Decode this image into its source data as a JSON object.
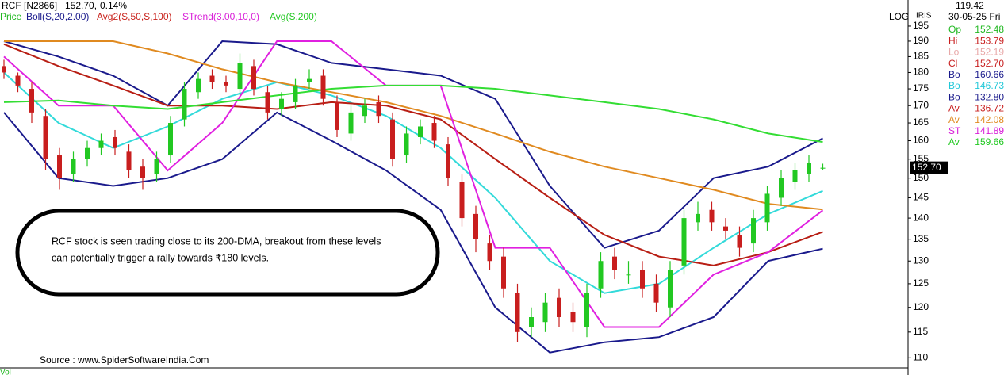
{
  "chart_data": {
    "type": "candlestick",
    "symbol": "RCF [N2866]",
    "last_price": "152.70,",
    "change": "0.14%",
    "price_label": "Price",
    "price_label_color": "#22b822",
    "scale_label": "LOG",
    "axis_label": "IRIS",
    "log_scale": true,
    "up_color": "#22c822",
    "down_color": "#c81e1e",
    "ylim": [
      108.7,
      204
    ],
    "yticks": [
      110,
      115,
      120,
      125,
      130,
      135,
      140,
      145,
      150,
      155,
      160,
      165,
      170,
      175,
      180,
      185,
      190,
      195
    ],
    "open": [
      182,
      179,
      175,
      167,
      156,
      151,
      155,
      158,
      161,
      157,
      153,
      151,
      156,
      166,
      174,
      179,
      177,
      175,
      182,
      174,
      169,
      171,
      177,
      179,
      171,
      162,
      167,
      171,
      166,
      156,
      161,
      165,
      159,
      149,
      141,
      134,
      131,
      123,
      116,
      117,
      122,
      119,
      116,
      124,
      131,
      127,
      128,
      125,
      120,
      129,
      139,
      142,
      138,
      136,
      134,
      139,
      145,
      149,
      151,
      152.48
    ],
    "high": [
      184,
      180,
      177,
      169,
      158,
      157,
      160,
      162,
      163,
      159,
      155,
      157,
      167,
      177,
      180,
      181,
      179,
      186,
      184,
      176,
      174,
      178,
      181,
      181,
      173,
      170,
      172,
      173,
      168,
      164,
      166,
      167,
      161,
      151,
      143,
      136,
      133,
      125,
      120,
      123,
      124,
      121,
      125,
      132,
      133,
      130,
      130,
      127,
      130,
      142,
      144,
      144,
      140,
      138,
      142,
      148,
      152,
      154,
      156,
      153.79
    ],
    "low": [
      178,
      174,
      165,
      152,
      147,
      149,
      153,
      156,
      156,
      150,
      147,
      149,
      154,
      164,
      172,
      175,
      174,
      173,
      173,
      166,
      167,
      169,
      175,
      170,
      161,
      160,
      165,
      165,
      153,
      154,
      159,
      158,
      148,
      138,
      132,
      128,
      122,
      113,
      114,
      115,
      116,
      115,
      114,
      122,
      126,
      125,
      122,
      119,
      118,
      127,
      137,
      137,
      135,
      131,
      132,
      137,
      143,
      147,
      149,
      152.19
    ],
    "close": [
      180,
      176,
      168,
      155,
      150,
      155,
      158,
      160,
      158,
      152,
      150,
      155,
      165,
      175,
      178,
      177,
      176,
      183,
      175,
      168,
      172,
      176,
      178,
      172,
      163,
      168,
      170,
      167,
      155,
      162,
      164,
      160,
      150,
      140,
      135,
      130,
      124,
      115,
      118,
      121,
      118,
      117,
      123,
      130,
      128,
      127,
      124,
      121,
      128,
      140,
      141,
      139,
      137,
      133,
      140,
      146,
      150,
      152,
      154,
      152.7
    ],
    "last_price_tag": "152.70",
    "indicators": [
      {
        "name": "Boll(S,20,2.00)",
        "color": "#1a1a8c",
        "lines": [
          {
            "color": "#1a1a8c",
            "values": [
              190,
              185,
              179,
              170,
              190,
              189,
              183,
              181,
              179,
              172,
              148,
              133,
              137,
              150,
              153,
              160.66
            ]
          },
          {
            "color": "#33dada",
            "values": [
              180,
              165,
              158,
              164,
              172,
              177,
              173,
              167,
              158,
              145,
              130,
              123,
              125,
              133,
              141,
              146.73
            ]
          },
          {
            "color": "#1a1a8c",
            "values": [
              168,
              150,
              148,
              150,
              155,
              168,
              160,
              152,
              142,
              120,
              111,
              113,
              114,
              118,
              130,
              132.8
            ]
          }
        ]
      },
      {
        "name": "Avg2(S,50,S,100)",
        "color": "#c8201a",
        "lines": [
          {
            "color": "#b81e14",
            "values": [
              189,
              182,
              176,
              170,
              170,
              169,
              171,
              170,
              166,
              155,
              145,
              136,
              131,
              129,
              132,
              136.72
            ]
          },
          {
            "color": "#e08a20",
            "values": [
              190,
              190,
              190,
              186,
              181,
              177,
              174,
              171,
              167,
              162,
              157,
              153,
              150,
              147,
              143.5,
              142.08
            ]
          }
        ]
      },
      {
        "name": "STrend(3.00,10,0)",
        "color": "#d81ed8",
        "lines": [
          {
            "color": "#e020e0",
            "values": [
              185,
              170,
              170,
              152,
              165,
              190,
              190,
              176,
              176,
              133,
              133,
              116,
              116,
              127,
              132,
              141.89
            ]
          }
        ]
      },
      {
        "name": "Avg(S,200)",
        "color": "#22c822",
        "lines": [
          {
            "color": "#33dd33",
            "values": [
              171,
              171.5,
              170,
              169,
              171,
              173,
              175,
              176,
              176,
              175,
              173,
              171,
              169,
              166,
              162,
              159.66
            ]
          }
        ]
      }
    ],
    "info_panel": {
      "value": "119.42",
      "date": "30-05-25 Fri",
      "rows": [
        {
          "label": "Op",
          "value": "152.48",
          "color": "#22b822"
        },
        {
          "label": "Hi",
          "value": "153.79",
          "color": "#c81e1e"
        },
        {
          "label": "Lo",
          "value": "152.19",
          "color": "#e8a8a8"
        },
        {
          "label": "Cl",
          "value": "152.70",
          "color": "#c81e1e"
        },
        {
          "label": "Bo",
          "value": "160.66",
          "color": "#1a1a8c"
        },
        {
          "label": "Bo",
          "value": "146.73",
          "color": "#22c8d8"
        },
        {
          "label": "Bo",
          "value": "132.80",
          "color": "#1a1a8c"
        },
        {
          "label": "Av",
          "value": "136.72",
          "color": "#c81e1e"
        },
        {
          "label": "Av",
          "value": "142.08",
          "color": "#e08a20"
        },
        {
          "label": "ST",
          "value": "141.89",
          "color": "#d81ed8"
        },
        {
          "label": "Av",
          "value": "159.66",
          "color": "#22c822"
        }
      ]
    },
    "annotation": [
      "RCF stock is seen trading close to its 200-DMA, breakout from these levels",
      "can potentially trigger a rally towards ₹180 levels."
    ],
    "source": "Source : www.SpiderSoftwareIndia.Com",
    "volume_label": "Vol"
  }
}
